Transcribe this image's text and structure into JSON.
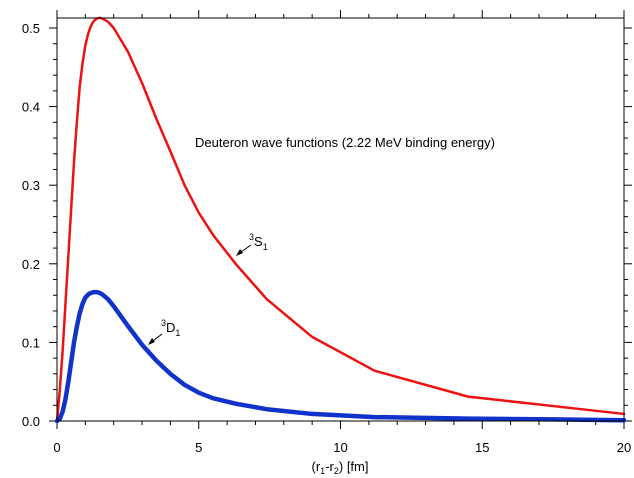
{
  "chart_data": {
    "type": "line",
    "annotation": "Deuteron wave functions  (2.22 MeV  binding energy)",
    "xlabel": {
      "pre": "(r",
      "sub1": "1",
      "mid": "-r",
      "sub2": "2",
      "post": ") [fm]"
    },
    "xlim": [
      0,
      20
    ],
    "ylim": [
      0,
      0.5
    ],
    "x_ticks": [
      0,
      5,
      10,
      15,
      20
    ],
    "x_tick_labels": [
      "0",
      "5",
      "10",
      "15",
      "20"
    ],
    "y_ticks": [
      0.0,
      0.1,
      0.2,
      0.3,
      0.4,
      0.5
    ],
    "y_tick_labels": [
      "0.0",
      "0.1",
      "0.2",
      "0.3",
      "0.4",
      "0.5"
    ],
    "series": [
      {
        "label": {
          "sup": "3",
          "main": "S",
          "sub": "1"
        },
        "color": "#ee1111",
        "points": [
          [
            0,
            0.0
          ],
          [
            0.1,
            0.04
          ],
          [
            0.2,
            0.09
          ],
          [
            0.3,
            0.15
          ],
          [
            0.4,
            0.21
          ],
          [
            0.5,
            0.27
          ],
          [
            0.6,
            0.33
          ],
          [
            0.7,
            0.38
          ],
          [
            0.8,
            0.425
          ],
          [
            0.9,
            0.455
          ],
          [
            1.0,
            0.478
          ],
          [
            1.1,
            0.493
          ],
          [
            1.2,
            0.503
          ],
          [
            1.3,
            0.509
          ],
          [
            1.4,
            0.512
          ],
          [
            1.5,
            0.513
          ],
          [
            1.6,
            0.512
          ],
          [
            1.8,
            0.508
          ],
          [
            2.0,
            0.5
          ],
          [
            2.5,
            0.47
          ],
          [
            3.0,
            0.43
          ],
          [
            3.5,
            0.385
          ],
          [
            4.0,
            0.343
          ],
          [
            4.5,
            0.3
          ],
          [
            5.0,
            0.265
          ],
          [
            5.5,
            0.237
          ],
          [
            6.3,
            0.2
          ],
          [
            7.4,
            0.155
          ],
          [
            9.0,
            0.107
          ],
          [
            11.2,
            0.064
          ],
          [
            14.5,
            0.031
          ],
          [
            17.5,
            0.019
          ],
          [
            20.0,
            0.009
          ]
        ]
      },
      {
        "label": {
          "sup": "3",
          "main": "D",
          "sub": "1"
        },
        "color": "#1133cc",
        "points": [
          [
            0,
            0.0
          ],
          [
            0.1,
            0.003
          ],
          [
            0.2,
            0.012
          ],
          [
            0.3,
            0.028
          ],
          [
            0.4,
            0.05
          ],
          [
            0.5,
            0.075
          ],
          [
            0.6,
            0.1
          ],
          [
            0.7,
            0.12
          ],
          [
            0.8,
            0.137
          ],
          [
            0.9,
            0.149
          ],
          [
            1.0,
            0.157
          ],
          [
            1.1,
            0.161
          ],
          [
            1.2,
            0.163
          ],
          [
            1.3,
            0.164
          ],
          [
            1.4,
            0.164
          ],
          [
            1.5,
            0.163
          ],
          [
            1.6,
            0.161
          ],
          [
            1.8,
            0.155
          ],
          [
            2.0,
            0.146
          ],
          [
            2.5,
            0.121
          ],
          [
            3.0,
            0.097
          ],
          [
            3.5,
            0.077
          ],
          [
            4.0,
            0.06
          ],
          [
            4.5,
            0.046
          ],
          [
            5.0,
            0.036
          ],
          [
            5.5,
            0.029
          ],
          [
            6.3,
            0.022
          ],
          [
            7.4,
            0.015
          ],
          [
            9.0,
            0.009
          ],
          [
            11.2,
            0.005
          ],
          [
            14.5,
            0.003
          ],
          [
            17.5,
            0.002
          ],
          [
            20.0,
            0.001
          ]
        ]
      }
    ]
  }
}
